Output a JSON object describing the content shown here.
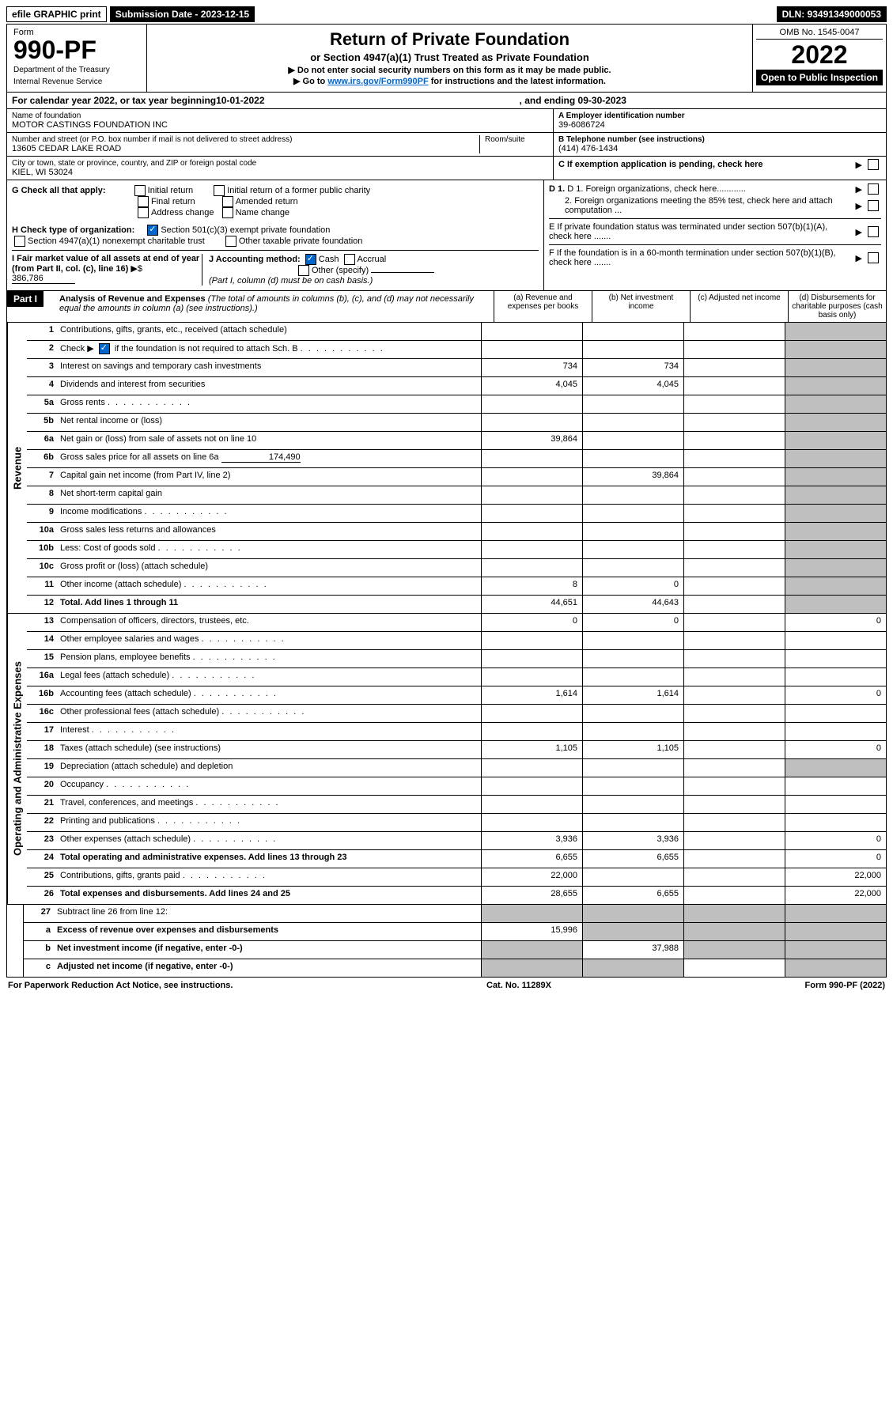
{
  "top": {
    "efile": "efile GRAPHIC print",
    "submission_label": "Submission Date - 2023-12-15",
    "dln": "DLN: 93491349000053"
  },
  "header": {
    "form_label": "Form",
    "form_number": "990-PF",
    "dept": "Department of the Treasury",
    "irs": "Internal Revenue Service",
    "title": "Return of Private Foundation",
    "subtitle": "or Section 4947(a)(1) Trust Treated as Private Foundation",
    "note1": "▶ Do not enter social security numbers on this form as it may be made public.",
    "note2_pre": "▶ Go to ",
    "note2_link": "www.irs.gov/Form990PF",
    "note2_post": " for instructions and the latest information.",
    "omb": "OMB No. 1545-0047",
    "year": "2022",
    "open": "Open to Public Inspection"
  },
  "cal": {
    "prefix": "For calendar year 2022, or tax year beginning ",
    "begin": "10-01-2022",
    "mid": " , and ending ",
    "end": "09-30-2023"
  },
  "info": {
    "name_lbl": "Name of foundation",
    "name": "MOTOR CASTINGS FOUNDATION INC",
    "addr_lbl": "Number and street (or P.O. box number if mail is not delivered to street address)",
    "addr": "13605 CEDAR LAKE ROAD",
    "room_lbl": "Room/suite",
    "city_lbl": "City or town, state or province, country, and ZIP or foreign postal code",
    "city": "KIEL, WI  53024",
    "a_lbl": "A Employer identification number",
    "a_val": "39-6086724",
    "b_lbl": "B Telephone number (see instructions)",
    "b_val": "(414) 476-1434",
    "c_lbl": "C If exemption application is pending, check here",
    "d1": "D 1. Foreign organizations, check here............",
    "d2": "2. Foreign organizations meeting the 85% test, check here and attach computation ...",
    "e": "E  If private foundation status was terminated under section 507(b)(1)(A), check here .......",
    "f": "F  If the foundation is in a 60-month termination under section 507(b)(1)(B), check here .......",
    "g_lbl": "G Check all that apply:",
    "g_opts": [
      "Initial return",
      "Final return",
      "Address change",
      "Initial return of a former public charity",
      "Amended return",
      "Name change"
    ],
    "h_lbl": "H Check type of organization:",
    "h1": "Section 501(c)(3) exempt private foundation",
    "h2": "Section 4947(a)(1) nonexempt charitable trust",
    "h3": "Other taxable private foundation",
    "i_lbl": "I Fair market value of all assets at end of year (from Part II, col. (c), line 16)",
    "i_val": "386,786",
    "j_lbl": "J Accounting method:",
    "j_cash": "Cash",
    "j_accrual": "Accrual",
    "j_other": "Other (specify)",
    "j_note": "(Part I, column (d) must be on cash basis.)"
  },
  "part1": {
    "label": "Part I",
    "title": "Analysis of Revenue and Expenses",
    "title_note": "(The total of amounts in columns (b), (c), and (d) may not necessarily equal the amounts in column (a) (see instructions).)",
    "col_a": "(a) Revenue and expenses per books",
    "col_b": "(b) Net investment income",
    "col_c": "(c) Adjusted net income",
    "col_d": "(d) Disbursements for charitable purposes (cash basis only)"
  },
  "sides": {
    "rev": "Revenue",
    "exp": "Operating and Administrative Expenses"
  },
  "lines": {
    "1": {
      "t": "Contributions, gifts, grants, etc., received (attach schedule)"
    },
    "2": {
      "t": "Check ▶",
      "t2": " if the foundation is not required to attach Sch. B"
    },
    "3": {
      "t": "Interest on savings and temporary cash investments",
      "a": "734",
      "b": "734"
    },
    "4": {
      "t": "Dividends and interest from securities",
      "a": "4,045",
      "b": "4,045"
    },
    "5a": {
      "t": "Gross rents"
    },
    "5b": {
      "t": "Net rental income or (loss)"
    },
    "6a": {
      "t": "Net gain or (loss) from sale of assets not on line 10",
      "a": "39,864"
    },
    "6b": {
      "t": "Gross sales price for all assets on line 6a",
      "v": "174,490"
    },
    "7": {
      "t": "Capital gain net income (from Part IV, line 2)",
      "b": "39,864"
    },
    "8": {
      "t": "Net short-term capital gain"
    },
    "9": {
      "t": "Income modifications"
    },
    "10a": {
      "t": "Gross sales less returns and allowances"
    },
    "10b": {
      "t": "Less: Cost of goods sold"
    },
    "10c": {
      "t": "Gross profit or (loss) (attach schedule)"
    },
    "11": {
      "t": "Other income (attach schedule)",
      "a": "8",
      "b": "0"
    },
    "12": {
      "t": "Total. Add lines 1 through 11",
      "a": "44,651",
      "b": "44,643"
    },
    "13": {
      "t": "Compensation of officers, directors, trustees, etc.",
      "a": "0",
      "b": "0",
      "d": "0"
    },
    "14": {
      "t": "Other employee salaries and wages"
    },
    "15": {
      "t": "Pension plans, employee benefits"
    },
    "16a": {
      "t": "Legal fees (attach schedule)"
    },
    "16b": {
      "t": "Accounting fees (attach schedule)",
      "a": "1,614",
      "b": "1,614",
      "d": "0"
    },
    "16c": {
      "t": "Other professional fees (attach schedule)"
    },
    "17": {
      "t": "Interest"
    },
    "18": {
      "t": "Taxes (attach schedule) (see instructions)",
      "a": "1,105",
      "b": "1,105",
      "d": "0"
    },
    "19": {
      "t": "Depreciation (attach schedule) and depletion"
    },
    "20": {
      "t": "Occupancy"
    },
    "21": {
      "t": "Travel, conferences, and meetings"
    },
    "22": {
      "t": "Printing and publications"
    },
    "23": {
      "t": "Other expenses (attach schedule)",
      "a": "3,936",
      "b": "3,936",
      "d": "0"
    },
    "24": {
      "t": "Total operating and administrative expenses. Add lines 13 through 23",
      "a": "6,655",
      "b": "6,655",
      "d": "0"
    },
    "25": {
      "t": "Contributions, gifts, grants paid",
      "a": "22,000",
      "d": "22,000"
    },
    "26": {
      "t": "Total expenses and disbursements. Add lines 24 and 25",
      "a": "28,655",
      "b": "6,655",
      "d": "22,000"
    },
    "27": {
      "t": "Subtract line 26 from line 12:"
    },
    "27a": {
      "t": "Excess of revenue over expenses and disbursements",
      "a": "15,996"
    },
    "27b": {
      "t": "Net investment income (if negative, enter -0-)",
      "b": "37,988"
    },
    "27c": {
      "t": "Adjusted net income (if negative, enter -0-)"
    }
  },
  "footer": {
    "left": "For Paperwork Reduction Act Notice, see instructions.",
    "mid": "Cat. No. 11289X",
    "right": "Form 990-PF (2022)"
  },
  "colors": {
    "grey": "#bfbfbf",
    "link": "#0066cc",
    "check": "#0066cc"
  }
}
